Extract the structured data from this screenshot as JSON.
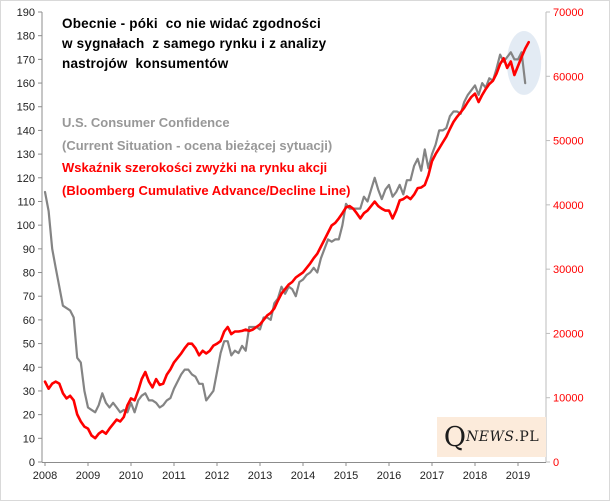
{
  "annotation": "Obecnie - póki  co nie widać zgodności\nw sygnałach  z samego rynku i z analizy\nnastrojów  konsumentów",
  "legend": {
    "gray": "U.S. Consumer Confidence\n(Current Situation - ocena bieżącej sytuacji)",
    "red": "Wskaźnik szerokości zwyżki na rynku akcji\n(Bloomberg Cumulative Advance/Decline Line)"
  },
  "logo": {
    "q": "Q",
    "news": "NEWS",
    "pl": ".PL"
  },
  "colors": {
    "gray_line": "#848484",
    "red_line": "#ff0000",
    "left_axis_labels": "#1f1f1f",
    "right_axis_labels": "#ff0000",
    "x_axis_labels": "#1f1f1f",
    "axis_line": "#8c8c8c",
    "right_axis_line": "#bdbdbd",
    "frame_border": "#d9d9d9",
    "ellipse_fill": "#c8d7ea"
  },
  "chart_data": {
    "type": "line",
    "title": "",
    "x_axis": {
      "tick_labels": [
        "2008",
        "2009",
        "2010",
        "2011",
        "2012",
        "2013",
        "2014",
        "2015",
        "2016",
        "2017",
        "2018",
        "2019"
      ],
      "range": [
        2008,
        2019.65
      ],
      "grid": false
    },
    "y_axis_left": {
      "tick_labels": [
        "0",
        "10",
        "20",
        "30",
        "40",
        "50",
        "60",
        "70",
        "80",
        "90",
        "100",
        "110",
        "120",
        "130",
        "140",
        "150",
        "160",
        "170",
        "180",
        "190"
      ],
      "range": [
        0,
        190
      ],
      "step": 10
    },
    "y_axis_right": {
      "tick_labels": [
        "0",
        "10000",
        "20000",
        "30000",
        "40000",
        "50000",
        "60000",
        "70000"
      ],
      "range": [
        0,
        70000
      ],
      "step": 10000
    },
    "series": [
      {
        "name": "U.S. Consumer Confidence (Current Situation - ocena bieżącej sytuacji)",
        "axis": "left",
        "color": "#848484",
        "start_year": 2008,
        "step_years": 0.0833333,
        "values": [
          114,
          106,
          90,
          82,
          74,
          66,
          65,
          64,
          61,
          44,
          42,
          30,
          23,
          22,
          21,
          24,
          29,
          25,
          23,
          25,
          23,
          21,
          22,
          21,
          25,
          21,
          26,
          28,
          29,
          26,
          26,
          25,
          23,
          24,
          26,
          27,
          31,
          34,
          37,
          39,
          39,
          37,
          36,
          33,
          33,
          26,
          28,
          30,
          38,
          46,
          51,
          51,
          45,
          47,
          46,
          49,
          47,
          57,
          57,
          57,
          56,
          61,
          61,
          60,
          67,
          69,
          74,
          71,
          74,
          73,
          70,
          76,
          77,
          79,
          80,
          82,
          80,
          86,
          90,
          94,
          93,
          94,
          94,
          100,
          109,
          107,
          107,
          107,
          107,
          112,
          110,
          115,
          120,
          115,
          111,
          115,
          117,
          112,
          114,
          117,
          113,
          119,
          119,
          125,
          128,
          123,
          132,
          124,
          130,
          134,
          140,
          140,
          141,
          146,
          148,
          148,
          147,
          152,
          155,
          157,
          159,
          155,
          160,
          158,
          162,
          161,
          166,
          172,
          169,
          171,
          173,
          170,
          170,
          173,
          160
        ]
      },
      {
        "name": "Wskaźnik szerokości zwyżki na rynku akcji (Bloomberg Cumulative Advance/Decline Line)",
        "axis": "right",
        "color": "#ff0000",
        "start_year": 2008,
        "step_years": 0.0833333,
        "values": [
          12500,
          11400,
          12200,
          12500,
          12200,
          10700,
          9900,
          10300,
          9600,
          7400,
          6300,
          5500,
          5200,
          4100,
          3700,
          4400,
          4800,
          4400,
          5200,
          5900,
          6600,
          6300,
          7000,
          8800,
          9900,
          9600,
          11100,
          12900,
          14000,
          12500,
          11600,
          12900,
          12000,
          12200,
          13600,
          14400,
          15500,
          16200,
          16900,
          17700,
          18400,
          18400,
          17700,
          16600,
          17300,
          16900,
          17300,
          18100,
          18400,
          18800,
          20300,
          21000,
          19900,
          20300,
          20300,
          20400,
          20600,
          20400,
          20600,
          21000,
          21400,
          22100,
          22800,
          23200,
          23900,
          25100,
          26200,
          26900,
          27600,
          28000,
          28700,
          29100,
          29500,
          30200,
          30900,
          31700,
          32400,
          33500,
          34600,
          35700,
          36800,
          37200,
          37900,
          38700,
          39600,
          39800,
          39400,
          38700,
          37900,
          38700,
          39100,
          39800,
          40500,
          39800,
          39400,
          39100,
          39100,
          37900,
          39100,
          40700,
          40900,
          41300,
          40900,
          41600,
          42600,
          42700,
          43100,
          44600,
          46800,
          47900,
          48800,
          49700,
          50600,
          51800,
          52900,
          53700,
          54400,
          55100,
          56000,
          56800,
          57300,
          56000,
          57100,
          58000,
          58800,
          59300,
          60400,
          61900,
          62800,
          61300,
          62300,
          60200,
          61600,
          63000,
          64300,
          65300
        ]
      }
    ],
    "highlight_ellipse": {
      "cx_year": 2019.14,
      "cy_left_value": 168.5,
      "rx_years": 0.4,
      "ry_left_value": 13.5,
      "fill": "#c8d7ea",
      "opacity": 0.5
    },
    "legend_position": "inside-top-left"
  }
}
